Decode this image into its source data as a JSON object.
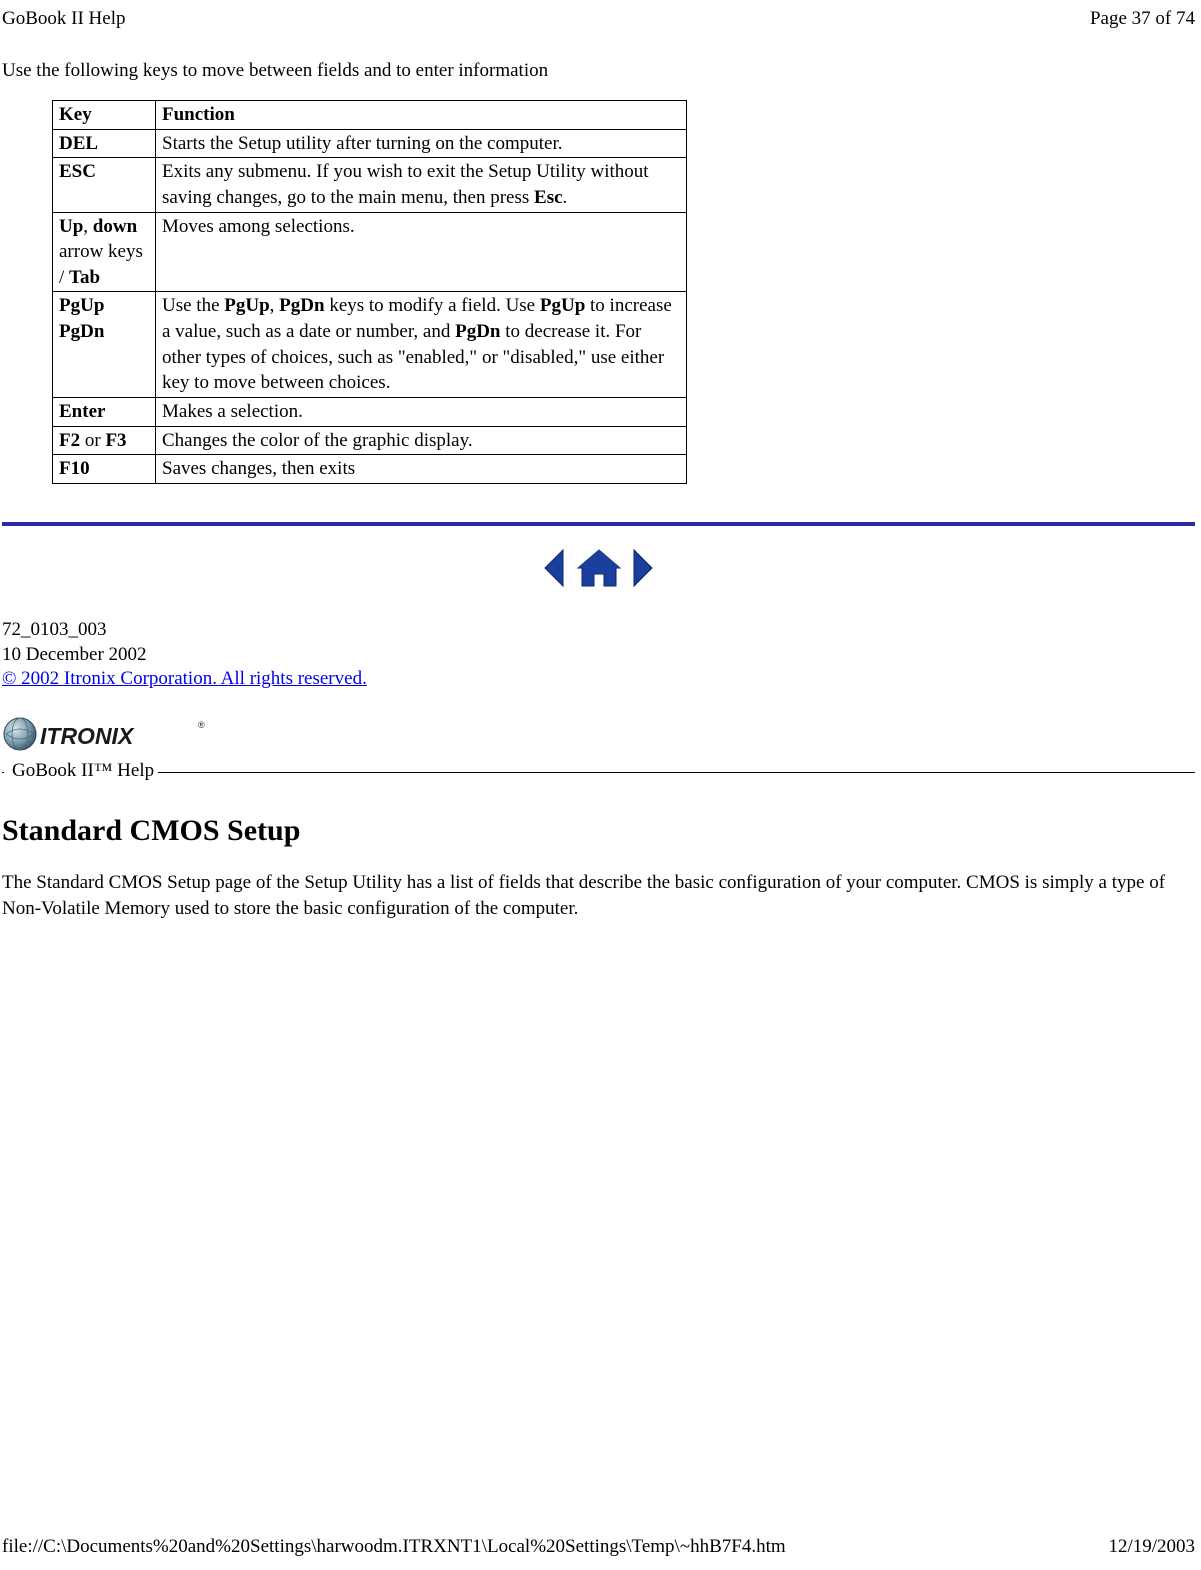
{
  "header": {
    "left": "GoBook II Help",
    "right": "Page 37 of 74"
  },
  "intro": "Use the following keys to move between fields and to enter information",
  "table": {
    "columns": [
      "Key",
      "Function"
    ],
    "rows": [
      {
        "key_parts": [
          {
            "t": "DEL",
            "b": true
          }
        ],
        "func_parts": [
          {
            "t": "Starts the Setup utility after turning on the computer.",
            "b": false
          }
        ]
      },
      {
        "key_parts": [
          {
            "t": "ESC",
            "b": true
          }
        ],
        "func_parts": [
          {
            "t": "Exits any submenu.  If you wish to exit the Setup Utility without saving changes, go to the main menu, then press ",
            "b": false
          },
          {
            "t": "Esc",
            "b": true
          },
          {
            "t": ".",
            "b": false
          }
        ]
      },
      {
        "key_parts": [
          {
            "t": "Up",
            "b": true
          },
          {
            "t": ", ",
            "b": false
          },
          {
            "t": "down",
            "b": true
          },
          {
            "t": " arrow keys / ",
            "b": false
          },
          {
            "t": "Tab",
            "b": true
          }
        ],
        "func_parts": [
          {
            "t": "Moves among selections.",
            "b": false
          }
        ]
      },
      {
        "key_parts": [
          {
            "t": "PgUp",
            "b": true
          },
          {
            "t": " ",
            "b": false
          },
          {
            "t": "PgDn",
            "b": true
          }
        ],
        "func_parts": [
          {
            "t": "Use the ",
            "b": false
          },
          {
            "t": "PgUp",
            "b": true
          },
          {
            "t": ", ",
            "b": false
          },
          {
            "t": "PgDn",
            "b": true
          },
          {
            "t": " keys to modify a field.  Use ",
            "b": false
          },
          {
            "t": "PgUp",
            "b": true
          },
          {
            "t": " to increase a value, such as a date or number, and ",
            "b": false
          },
          {
            "t": "PgDn",
            "b": true
          },
          {
            "t": " to decrease it.  For other types of choices, such as \"enabled,\" or \"disabled,\" use either key to move between choices.",
            "b": false
          }
        ]
      },
      {
        "key_parts": [
          {
            "t": "Enter",
            "b": true
          }
        ],
        "func_parts": [
          {
            "t": "Makes a selection.",
            "b": false
          }
        ]
      },
      {
        "key_parts": [
          {
            "t": "F2",
            "b": true
          },
          {
            "t": " or ",
            "b": false
          },
          {
            "t": "F3",
            "b": true
          }
        ],
        "func_parts": [
          {
            "t": "Changes the color of the graphic display.",
            "b": false
          }
        ]
      },
      {
        "key_parts": [
          {
            "t": "F10",
            "b": true
          }
        ],
        "func_parts": [
          {
            "t": "Saves changes, then exits",
            "b": false
          }
        ]
      }
    ]
  },
  "nav_icons": {
    "arrow_color": "#1a3f9e",
    "home_fill": "#1a3f9e",
    "home_roof": "#c0392b"
  },
  "divider_color": "#2a2aa8",
  "meta": {
    "ref": "72_0103_003",
    "date": "10 December 2002",
    "copyright": "© 2002 Itronix Corporation.  All rights reserved."
  },
  "logo": {
    "text": "ITRONIX",
    "globe_colors": {
      "outer": "#5a7a8a",
      "inner": "#8fb0c0",
      "highlight": "#d0e0e8"
    },
    "trademark": "®"
  },
  "section_label": "GoBook II™ Help",
  "section_heading": "Standard CMOS Setup",
  "body": "The Standard CMOS Setup page of the Setup Utility has a list of fields that describe the basic configuration of your computer.  CMOS is simply a type of Non-Volatile Memory used to store the basic configuration of the computer.",
  "footer": {
    "left": "file://C:\\Documents%20and%20Settings\\harwoodm.ITRXNT1\\Local%20Settings\\Temp\\~hhB7F4.htm",
    "right": "12/19/2003"
  }
}
